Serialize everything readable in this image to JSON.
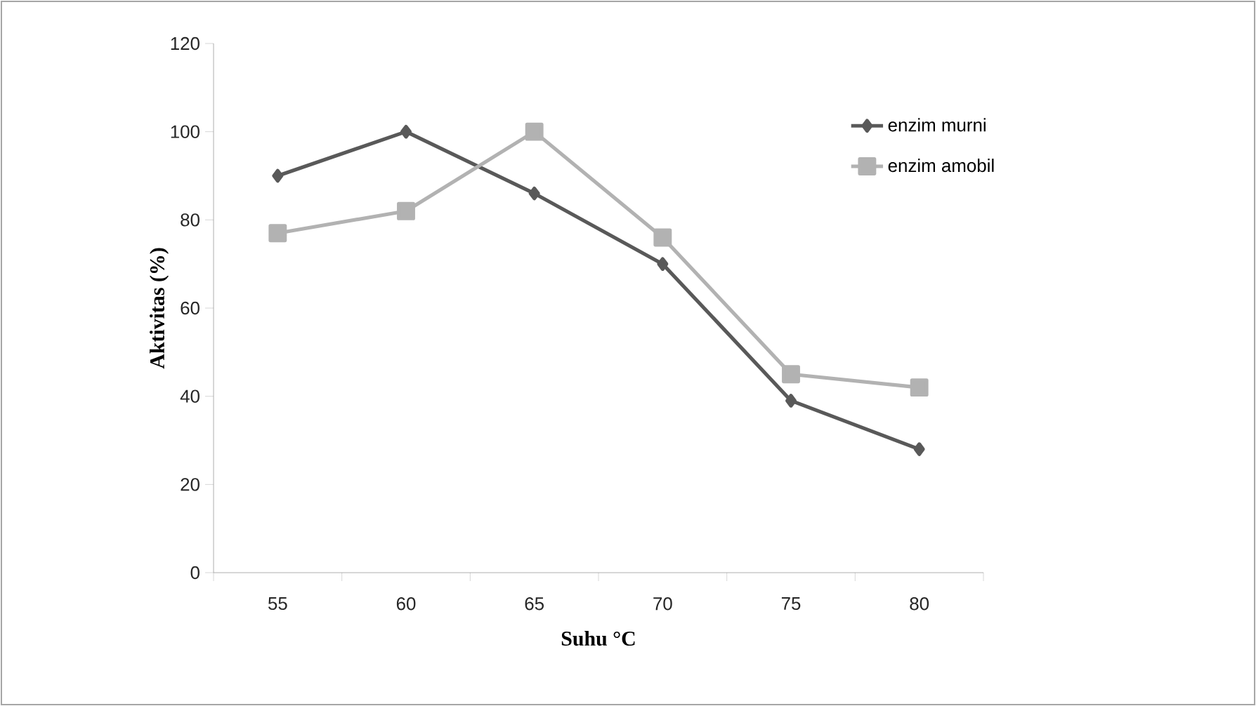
{
  "chart_data": {
    "type": "line",
    "xlabel": "Suhu °C",
    "ylabel": "Aktivitas (%)",
    "categories": [
      "55",
      "60",
      "65",
      "70",
      "75",
      "80"
    ],
    "series": [
      {
        "name": "enzim murni",
        "color": "#595959",
        "marker": "diamond",
        "values": [
          90,
          100,
          86,
          70,
          39,
          28
        ]
      },
      {
        "name": "enzim amobil",
        "color": "#b2b2b2",
        "marker": "square",
        "values": [
          77,
          82,
          100,
          76,
          45,
          42
        ]
      }
    ],
    "ylim": [
      0,
      120
    ],
    "yticks": [
      0,
      20,
      40,
      60,
      80,
      100,
      120
    ],
    "legend": "top right",
    "line_style": "solid"
  }
}
